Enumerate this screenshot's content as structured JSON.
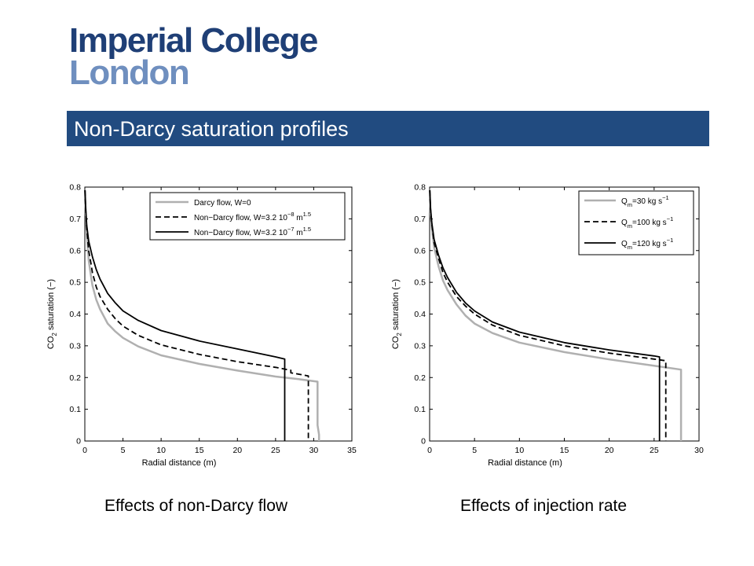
{
  "logo": {
    "line1": "Imperial College",
    "line2": "London"
  },
  "slide_title": "Non-Darcy saturation profiles",
  "captions": [
    "Effects of non-Darcy flow",
    "Effects of injection rate"
  ],
  "chart_data": [
    {
      "type": "line",
      "xlabel": "Radial distance (m)",
      "ylabel": {
        "prefix": "CO",
        "sub": "2",
        "suffix": " saturation (−)"
      },
      "xlim": [
        0,
        35
      ],
      "ylim": [
        0,
        0.8
      ],
      "xticks": [
        "0",
        "5",
        "10",
        "15",
        "20",
        "25",
        "30",
        "35"
      ],
      "yticks": [
        "0",
        "0.1",
        "0.2",
        "0.3",
        "0.4",
        "0.5",
        "0.6",
        "0.7",
        "0.8"
      ],
      "legend_position": "top-right",
      "grid": false,
      "series": [
        {
          "label": {
            "main": "Darcy flow, W=0",
            "exp1": "",
            "mid": "",
            "exp2": ""
          },
          "color": "#b0b0b0",
          "style": "solid",
          "width": 2.5,
          "points": [
            [
              0.02,
              0.79
            ],
            [
              0.1,
              0.72
            ],
            [
              0.25,
              0.66
            ],
            [
              0.5,
              0.57
            ],
            [
              0.8,
              0.52
            ],
            [
              1,
              0.49
            ],
            [
              1.5,
              0.445
            ],
            [
              2,
              0.415
            ],
            [
              3,
              0.37
            ],
            [
              4,
              0.345
            ],
            [
              5,
              0.325
            ],
            [
              7,
              0.298
            ],
            [
              10,
              0.27
            ],
            [
              15,
              0.243
            ],
            [
              20,
              0.222
            ],
            [
              25,
              0.203
            ],
            [
              28,
              0.195
            ],
            [
              30.5,
              0.187
            ],
            [
              30.5,
              0.05
            ],
            [
              30.7,
              0.02
            ],
            [
              30.7,
              0
            ]
          ]
        },
        {
          "label": {
            "main": "Non−Darcy flow, W=3.2 10",
            "exp1": "−8",
            "mid": " m",
            "exp2": "1.5"
          },
          "color": "#000000",
          "style": "dashed",
          "width": 1.8,
          "points": [
            [
              0.02,
              0.79
            ],
            [
              0.1,
              0.73
            ],
            [
              0.25,
              0.67
            ],
            [
              0.5,
              0.6
            ],
            [
              0.8,
              0.56
            ],
            [
              1,
              0.53
            ],
            [
              1.5,
              0.485
            ],
            [
              2,
              0.455
            ],
            [
              3,
              0.415
            ],
            [
              4,
              0.385
            ],
            [
              5,
              0.362
            ],
            [
              7,
              0.333
            ],
            [
              10,
              0.303
            ],
            [
              15,
              0.273
            ],
            [
              20,
              0.25
            ],
            [
              25,
              0.232
            ],
            [
              27,
              0.223
            ],
            [
              27,
              0.215
            ],
            [
              29.3,
              0.205
            ],
            [
              29.3,
              0
            ]
          ]
        },
        {
          "label": {
            "main": "Non−Darcy flow, W=3.2 10",
            "exp1": "−7",
            "mid": " m",
            "exp2": "1.5"
          },
          "color": "#000000",
          "style": "solid",
          "width": 1.8,
          "points": [
            [
              0.02,
              0.79
            ],
            [
              0.1,
              0.74
            ],
            [
              0.25,
              0.68
            ],
            [
              0.5,
              0.63
            ],
            [
              0.8,
              0.6
            ],
            [
              1,
              0.58
            ],
            [
              1.5,
              0.54
            ],
            [
              2,
              0.51
            ],
            [
              3,
              0.465
            ],
            [
              4,
              0.435
            ],
            [
              5,
              0.41
            ],
            [
              7,
              0.38
            ],
            [
              10,
              0.348
            ],
            [
              15,
              0.315
            ],
            [
              20,
              0.29
            ],
            [
              25,
              0.265
            ],
            [
              26.2,
              0.258
            ],
            [
              26.2,
              0
            ]
          ]
        }
      ]
    },
    {
      "type": "line",
      "xlabel": "Radial distance (m)",
      "ylabel": {
        "prefix": "CO",
        "sub": "2",
        "suffix": " saturation (−)"
      },
      "xlim": [
        0,
        30
      ],
      "ylim": [
        0,
        0.8
      ],
      "xticks": [
        "0",
        "5",
        "10",
        "15",
        "20",
        "25",
        "30"
      ],
      "yticks": [
        "0",
        "0.1",
        "0.2",
        "0.3",
        "0.4",
        "0.5",
        "0.6",
        "0.7",
        "0.8"
      ],
      "legend_position": "top-right",
      "grid": false,
      "series": [
        {
          "label": {
            "main": "Q",
            "sub": "m",
            "rest": "=30 kg s",
            "exp": "−1"
          },
          "color": "#b0b0b0",
          "style": "solid",
          "width": 2.5,
          "points": [
            [
              0.02,
              0.79
            ],
            [
              0.1,
              0.72
            ],
            [
              0.25,
              0.67
            ],
            [
              0.5,
              0.61
            ],
            [
              1,
              0.55
            ],
            [
              1.5,
              0.505
            ],
            [
              2,
              0.475
            ],
            [
              3,
              0.43
            ],
            [
              4,
              0.395
            ],
            [
              5,
              0.37
            ],
            [
              7,
              0.34
            ],
            [
              10,
              0.31
            ],
            [
              15,
              0.28
            ],
            [
              20,
              0.257
            ],
            [
              25,
              0.237
            ],
            [
              28,
              0.225
            ],
            [
              28,
              0
            ]
          ]
        },
        {
          "label": {
            "main": "Q",
            "sub": "m",
            "rest": "=100 kg s",
            "exp": "−1"
          },
          "color": "#000000",
          "style": "dashed",
          "width": 1.8,
          "points": [
            [
              0.02,
              0.79
            ],
            [
              0.1,
              0.73
            ],
            [
              0.25,
              0.68
            ],
            [
              0.5,
              0.625
            ],
            [
              1,
              0.575
            ],
            [
              1.5,
              0.53
            ],
            [
              2,
              0.5
            ],
            [
              3,
              0.455
            ],
            [
              4,
              0.425
            ],
            [
              5,
              0.4
            ],
            [
              7,
              0.365
            ],
            [
              10,
              0.333
            ],
            [
              15,
              0.3
            ],
            [
              20,
              0.277
            ],
            [
              25,
              0.258
            ],
            [
              26.3,
              0.253
            ],
            [
              26.3,
              0
            ]
          ]
        },
        {
          "label": {
            "main": "Q",
            "sub": "m",
            "rest": "=120 kg s",
            "exp": "−1"
          },
          "color": "#000000",
          "style": "solid",
          "width": 1.8,
          "points": [
            [
              0.02,
              0.79
            ],
            [
              0.1,
              0.735
            ],
            [
              0.25,
              0.685
            ],
            [
              0.5,
              0.635
            ],
            [
              1,
              0.585
            ],
            [
              1.5,
              0.545
            ],
            [
              2,
              0.515
            ],
            [
              3,
              0.468
            ],
            [
              4,
              0.435
            ],
            [
              5,
              0.41
            ],
            [
              7,
              0.375
            ],
            [
              10,
              0.343
            ],
            [
              15,
              0.31
            ],
            [
              20,
              0.287
            ],
            [
              25,
              0.268
            ],
            [
              25.6,
              0.265
            ],
            [
              25.6,
              0
            ]
          ]
        }
      ]
    }
  ]
}
